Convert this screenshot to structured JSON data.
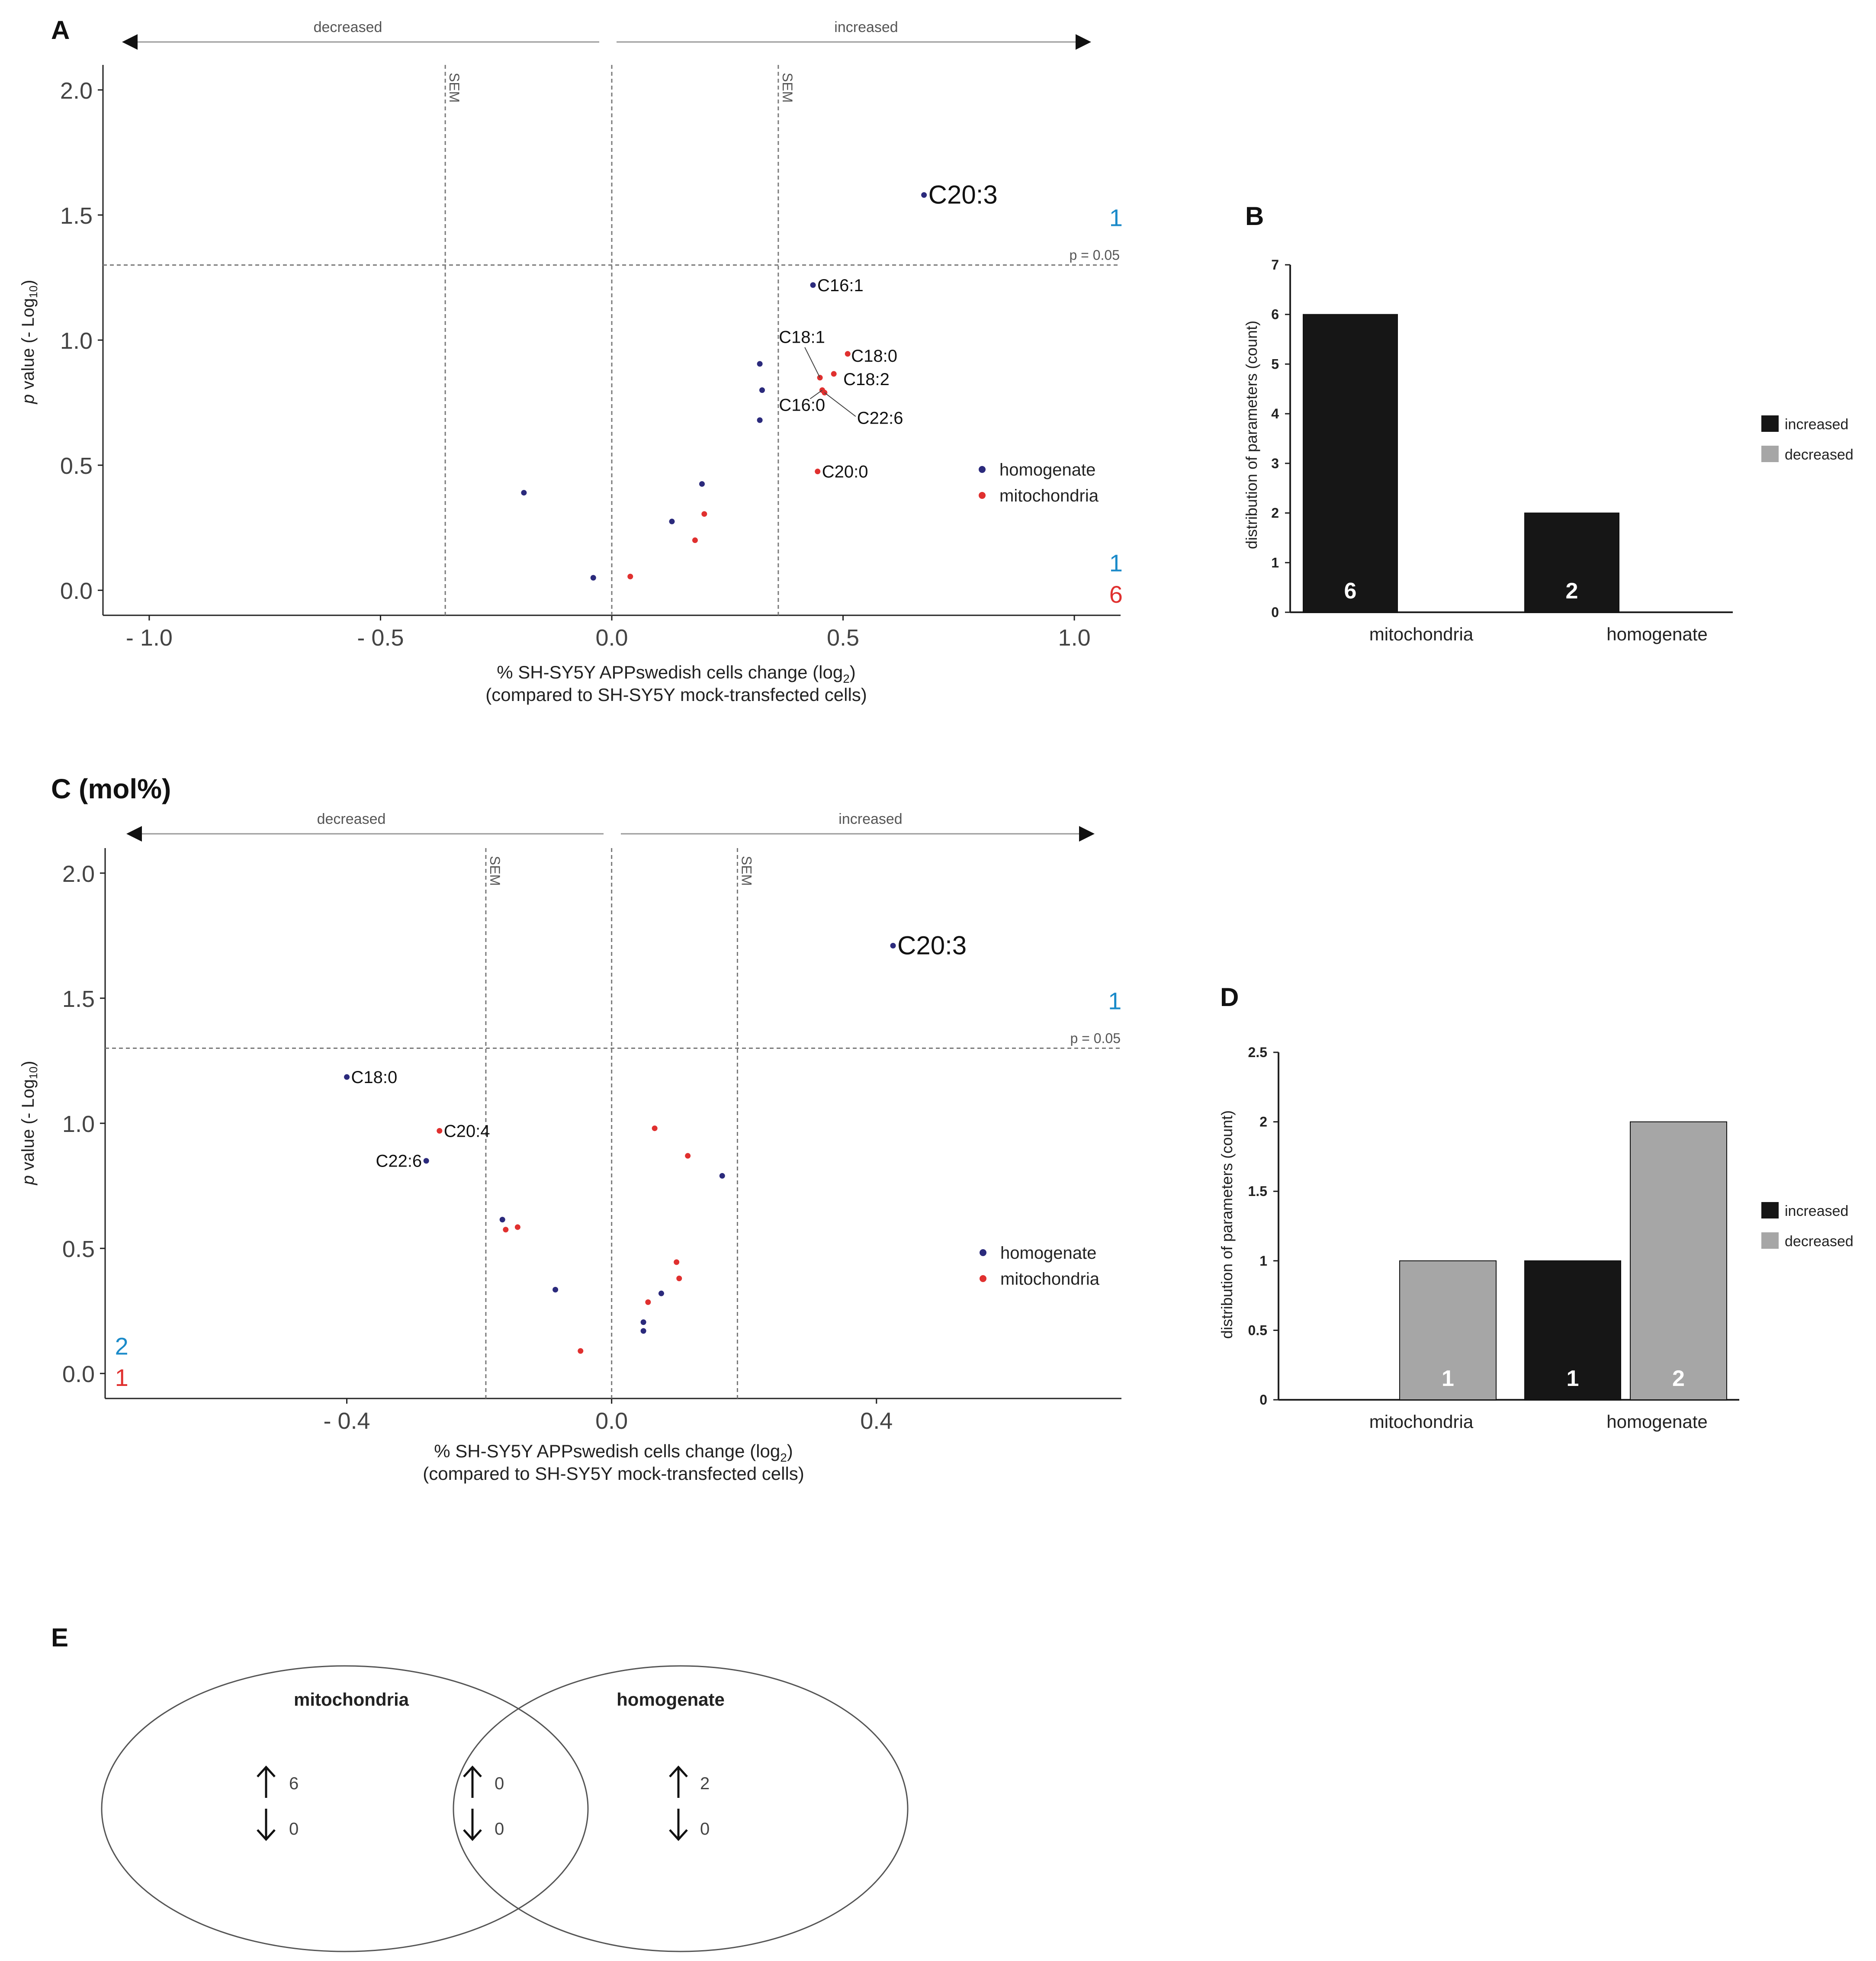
{
  "colors": {
    "homogenate": "#2b2a7c",
    "mitochondria": "#e0302f",
    "count_blue": "#1a8ac9",
    "count_red": "#e0302f",
    "increased": "#161616",
    "decreased": "#a6a6a6",
    "axis": "#222222",
    "guide": "#7a7a7a"
  },
  "chart_data": [
    {
      "panel": "A",
      "type": "scatter",
      "direction_labels": {
        "decreased": "decreased",
        "increased": "increased"
      },
      "xlabel": "% SH-SY5Y APPswedish cells change (log",
      "xlabel_sub": "2",
      "xlabel_tail": ")",
      "xlabel2": "(compared to SH-SY5Y mock-transfected cells)",
      "ylabel_italic": "p",
      "ylabel": " value (- Log",
      "ylabel_sub": "10",
      "ylabel_tail": ")",
      "xlim": [
        -1.1,
        1.1
      ],
      "ylim": [
        -0.1,
        2.1
      ],
      "xticks": [
        -1.0,
        -0.5,
        0.0,
        0.5,
        1.0
      ],
      "xtick_labels": [
        "- 1.0",
        "- 0.5",
        "0.0",
        "0.5",
        "1.0"
      ],
      "yticks": [
        0.0,
        0.5,
        1.0,
        1.5,
        2.0
      ],
      "ytick_labels": [
        "0.0",
        "0.5",
        "1.0",
        "1.5",
        "2.0"
      ],
      "sem_lines": [
        -0.36,
        0.36
      ],
      "sem_label": "SEM",
      "pline": 1.3,
      "pline_label": "p = 0.05",
      "legend": [
        "homogenate",
        "mitochondria"
      ],
      "series": [
        {
          "name": "homogenate",
          "points": [
            [
              0.675,
              1.58
            ],
            [
              0.435,
              1.22
            ],
            [
              0.32,
              0.905
            ],
            [
              0.325,
              0.8
            ],
            [
              0.32,
              0.68
            ],
            [
              0.195,
              0.425
            ],
            [
              -0.19,
              0.39
            ],
            [
              0.13,
              0.275
            ],
            [
              -0.04,
              0.05
            ]
          ]
        },
        {
          "name": "mitochondria",
          "points": [
            [
              0.51,
              0.945
            ],
            [
              0.48,
              0.865
            ],
            [
              0.45,
              0.85
            ],
            [
              0.455,
              0.8
            ],
            [
              0.46,
              0.79
            ],
            [
              0.445,
              0.475
            ],
            [
              0.2,
              0.305
            ],
            [
              0.18,
              0.2
            ],
            [
              0.04,
              0.055
            ]
          ]
        }
      ],
      "annotations": [
        {
          "text": "C20:3",
          "x": 0.675,
          "y": 1.58,
          "big": true
        },
        {
          "text": "C16:1",
          "x": 0.435,
          "y": 1.22
        },
        {
          "text": "C18:1",
          "x": 0.45,
          "y": 0.85,
          "leader": true
        },
        {
          "text": "C18:0",
          "x": 0.51,
          "y": 0.945
        },
        {
          "text": "C18:2",
          "x": 0.48,
          "y": 0.865
        },
        {
          "text": "C16:0",
          "x": 0.455,
          "y": 0.8
        },
        {
          "text": "C22:6",
          "x": 0.46,
          "y": 0.79,
          "leader": true
        },
        {
          "text": "C20:0",
          "x": 0.445,
          "y": 0.475
        }
      ],
      "counts": [
        {
          "text": "1",
          "series": "homogenate",
          "x": 1.09,
          "y": 1.49
        },
        {
          "text": "1",
          "series": "homogenate",
          "x": 1.09,
          "y": 0.11
        },
        {
          "text": "6",
          "series": "mitochondria",
          "x": 1.09,
          "y": -0.015
        }
      ]
    },
    {
      "panel": "B",
      "type": "bar",
      "categories": [
        "mitochondria",
        "homogenate"
      ],
      "series": [
        {
          "name": "increased",
          "values": [
            6,
            2
          ]
        },
        {
          "name": "decreased",
          "values": [
            0,
            0
          ]
        }
      ],
      "bar_labels": [
        "6",
        "2"
      ],
      "ylabel": "distribution of parameters (count)",
      "ylim": [
        0,
        7
      ],
      "yticks": [
        "0",
        "1",
        "2",
        "3",
        "4",
        "5",
        "6",
        "7"
      ],
      "legend": [
        "increased",
        "decreased"
      ]
    },
    {
      "panel": "C",
      "title": "C (mol%)",
      "type": "scatter",
      "direction_labels": {
        "decreased": "decreased",
        "increased": "increased"
      },
      "xlabel": "% SH-SY5Y APPswedish cells change (log",
      "xlabel_sub": "2",
      "xlabel_tail": ")",
      "xlabel2": "(compared to SH-SY5Y mock-transfected cells)",
      "ylabel_italic": "p",
      "ylabel": " value (- Log",
      "ylabel_sub": "10",
      "ylabel_tail": ")",
      "xlim": [
        -0.765,
        0.77
      ],
      "ylim": [
        -0.1,
        2.1
      ],
      "xticks": [
        -0.4,
        0.0,
        0.4
      ],
      "xtick_labels": [
        "- 0.4",
        "0.0",
        "0.4"
      ],
      "yticks": [
        0.0,
        0.5,
        1.0,
        1.5,
        2.0
      ],
      "ytick_labels": [
        "0.0",
        "0.5",
        "1.0",
        "1.5",
        "2.0"
      ],
      "sem_lines": [
        -0.19,
        0.19
      ],
      "sem_label": "SEM",
      "pline": 1.3,
      "pline_label": "p = 0.05",
      "legend": [
        "homogenate",
        "mitochondria"
      ],
      "series": [
        {
          "name": "homogenate",
          "points": [
            [
              0.425,
              1.71
            ],
            [
              -0.4,
              1.185
            ],
            [
              -0.28,
              0.85
            ],
            [
              0.167,
              0.79
            ],
            [
              -0.165,
              0.615
            ],
            [
              -0.085,
              0.335
            ],
            [
              0.075,
              0.32
            ],
            [
              0.048,
              0.205
            ],
            [
              0.048,
              0.17
            ]
          ]
        },
        {
          "name": "mitochondria",
          "points": [
            [
              -0.26,
              0.97
            ],
            [
              0.065,
              0.98
            ],
            [
              0.115,
              0.87
            ],
            [
              -0.16,
              0.575
            ],
            [
              -0.142,
              0.585
            ],
            [
              0.098,
              0.445
            ],
            [
              0.102,
              0.38
            ],
            [
              0.055,
              0.285
            ],
            [
              -0.047,
              0.09
            ]
          ]
        }
      ],
      "annotations": [
        {
          "text": "C20:3",
          "x": 0.425,
          "y": 1.71,
          "big": true
        },
        {
          "text": "C18:0",
          "x": -0.4,
          "y": 1.185
        },
        {
          "text": "C20:4",
          "x": -0.26,
          "y": 0.97
        },
        {
          "text": "C22:6",
          "x": -0.28,
          "y": 0.85,
          "left": true
        }
      ],
      "counts": [
        {
          "text": "1",
          "series": "homogenate",
          "x": 0.76,
          "y": 1.49
        },
        {
          "text": "2",
          "series": "homogenate",
          "x": -0.74,
          "y": 0.11
        },
        {
          "text": "1",
          "series": "mitochondria",
          "x": -0.74,
          "y": -0.015
        }
      ]
    },
    {
      "panel": "D",
      "type": "bar",
      "categories": [
        "mitochondria",
        "homogenate"
      ],
      "series": [
        {
          "name": "increased",
          "values": [
            0,
            1
          ]
        },
        {
          "name": "decreased",
          "values": [
            1,
            2
          ]
        }
      ],
      "bar_labels_increased": [
        "",
        "1"
      ],
      "bar_labels_decreased": [
        "1",
        "2"
      ],
      "ylabel": "distribution of parameters (count)",
      "ylim": [
        0,
        2.5
      ],
      "yticks": [
        "0",
        "0.5",
        "1",
        "1.5",
        "2",
        "2.5"
      ],
      "legend": [
        "increased",
        "decreased"
      ]
    }
  ],
  "panel_letters": {
    "A": "A",
    "B": "B",
    "D": "D",
    "E": "E"
  },
  "venn": {
    "left_label": "mitochondria",
    "right_label": "homogenate",
    "left_up": "6",
    "left_down": "0",
    "mid_up": "0",
    "mid_down": "0",
    "right_up": "2",
    "right_down": "0"
  }
}
